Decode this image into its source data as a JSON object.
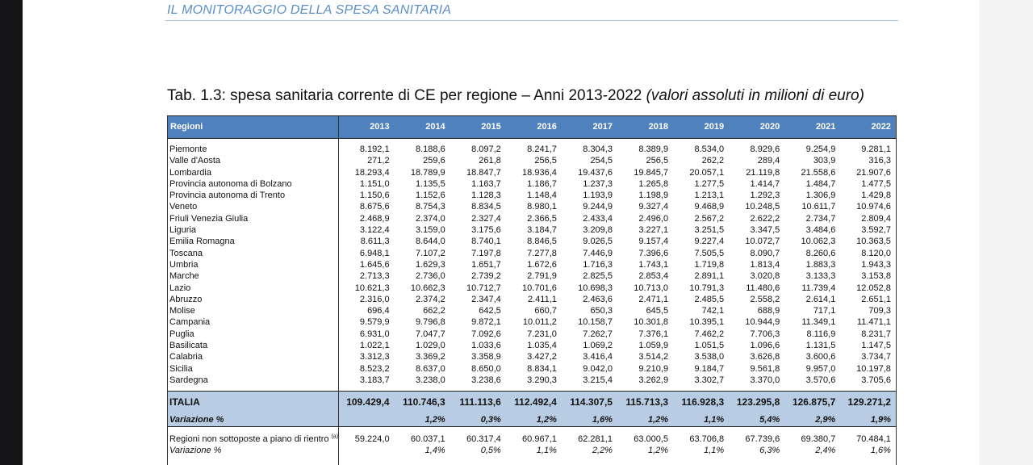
{
  "header": {
    "title": "IL MONITORAGGIO DELLA SPESA SANITARIA"
  },
  "caption": {
    "main": "Tab. 1.3: spesa sanitaria corrente di CE per regione – Anni 2013-2022",
    "sub": "(valori assoluti in milioni di euro)"
  },
  "table": {
    "header_label": "Regioni",
    "years": [
      "2013",
      "2014",
      "2015",
      "2016",
      "2017",
      "2018",
      "2019",
      "2020",
      "2021",
      "2022"
    ],
    "rows": [
      {
        "name": "Piemonte",
        "values": [
          "8.192,1",
          "8.188,6",
          "8.097,2",
          "8.241,7",
          "8.304,3",
          "8.389,9",
          "8.534,0",
          "8.929,6",
          "9.254,9",
          "9.281,1"
        ]
      },
      {
        "name": "Valle d'Aosta",
        "values": [
          "271,2",
          "259,6",
          "261,8",
          "256,5",
          "254,5",
          "256,5",
          "262,2",
          "289,4",
          "303,9",
          "316,3"
        ]
      },
      {
        "name": "Lombardia",
        "values": [
          "18.293,4",
          "18.789,9",
          "18.847,7",
          "18.936,4",
          "19.437,6",
          "19.845,7",
          "20.057,1",
          "21.119,8",
          "21.558,6",
          "21.907,6"
        ]
      },
      {
        "name": "Provincia autonoma di Bolzano",
        "values": [
          "1.151,0",
          "1.135,5",
          "1.163,7",
          "1.186,7",
          "1.237,3",
          "1.265,8",
          "1.277,5",
          "1.414,7",
          "1.484,7",
          "1.477,5"
        ]
      },
      {
        "name": "Provincia autonoma di Trento",
        "values": [
          "1.150,6",
          "1.152,6",
          "1.128,3",
          "1.148,4",
          "1.193,9",
          "1.198,9",
          "1.213,1",
          "1.292,3",
          "1.306,9",
          "1.429,8"
        ]
      },
      {
        "name": "Veneto",
        "values": [
          "8.675,6",
          "8.754,3",
          "8.834,5",
          "8.980,1",
          "9.244,9",
          "9.327,4",
          "9.468,9",
          "10.248,5",
          "10.611,7",
          "10.974,6"
        ]
      },
      {
        "name": "Friuli Venezia Giulia",
        "values": [
          "2.468,9",
          "2.374,0",
          "2.327,4",
          "2.366,5",
          "2.433,4",
          "2.496,0",
          "2.567,2",
          "2.622,2",
          "2.734,7",
          "2.809,4"
        ]
      },
      {
        "name": "Liguria",
        "values": [
          "3.122,4",
          "3.159,0",
          "3.175,6",
          "3.184,7",
          "3.209,8",
          "3.227,1",
          "3.251,5",
          "3.347,5",
          "3.484,6",
          "3.592,7"
        ]
      },
      {
        "name": "Emilia Romagna",
        "values": [
          "8.611,3",
          "8.644,0",
          "8.740,1",
          "8.846,5",
          "9.026,5",
          "9.157,4",
          "9.227,4",
          "10.072,7",
          "10.062,3",
          "10.363,5"
        ]
      },
      {
        "name": "Toscana",
        "values": [
          "6.948,1",
          "7.107,2",
          "7.197,8",
          "7.277,8",
          "7.446,9",
          "7.396,6",
          "7.505,5",
          "8.090,7",
          "8.260,6",
          "8.120,0"
        ]
      },
      {
        "name": "Umbria",
        "values": [
          "1.645,6",
          "1.629,3",
          "1.651,7",
          "1.672,6",
          "1.716,3",
          "1.743,1",
          "1.719,8",
          "1.813,4",
          "1.883,3",
          "1.943,3"
        ]
      },
      {
        "name": "Marche",
        "values": [
          "2.713,3",
          "2.736,0",
          "2.739,2",
          "2.791,9",
          "2.825,5",
          "2.853,4",
          "2.891,1",
          "3.020,8",
          "3.133,3",
          "3.153,8"
        ]
      },
      {
        "name": "Lazio",
        "values": [
          "10.621,3",
          "10.662,3",
          "10.712,7",
          "10.701,6",
          "10.698,3",
          "10.713,0",
          "10.791,3",
          "11.480,6",
          "11.739,4",
          "12.052,8"
        ]
      },
      {
        "name": "Abruzzo",
        "values": [
          "2.316,0",
          "2.374,2",
          "2.347,4",
          "2.411,1",
          "2.463,6",
          "2.471,1",
          "2.485,5",
          "2.558,2",
          "2.614,1",
          "2.651,1"
        ]
      },
      {
        "name": "Molise",
        "values": [
          "696,4",
          "662,2",
          "642,5",
          "660,7",
          "650,3",
          "645,5",
          "742,1",
          "688,9",
          "717,1",
          "709,3"
        ]
      },
      {
        "name": "Campania",
        "values": [
          "9.579,9",
          "9.796,8",
          "9.872,1",
          "10.011,2",
          "10.158,7",
          "10.301,8",
          "10.395,1",
          "10.944,9",
          "11.349,1",
          "11.471,1"
        ]
      },
      {
        "name": "Puglia",
        "values": [
          "6.931,0",
          "7.047,7",
          "7.092,6",
          "7.231,0",
          "7.262,7",
          "7.376,1",
          "7.462,2",
          "7.706,3",
          "8.116,9",
          "8.231,7"
        ]
      },
      {
        "name": "Basilicata",
        "values": [
          "1.022,1",
          "1.029,0",
          "1.033,6",
          "1.035,4",
          "1.069,2",
          "1.059,9",
          "1.051,5",
          "1.096,6",
          "1.131,5",
          "1.147,5"
        ]
      },
      {
        "name": "Calabria",
        "values": [
          "3.312,3",
          "3.369,2",
          "3.358,9",
          "3.427,2",
          "3.416,4",
          "3.514,2",
          "3.538,0",
          "3.626,8",
          "3.600,6",
          "3.734,7"
        ]
      },
      {
        "name": "Sicilia",
        "values": [
          "8.523,2",
          "8.637,0",
          "8.650,0",
          "8.834,1",
          "9.042,0",
          "9.210,9",
          "9.184,7",
          "9.561,8",
          "9.957,0",
          "10.197,8"
        ]
      },
      {
        "name": "Sardegna",
        "values": [
          "3.183,7",
          "3.238,0",
          "3.238,6",
          "3.290,3",
          "3.215,4",
          "3.262,9",
          "3.302,7",
          "3.370,0",
          "3.570,6",
          "3.705,6"
        ]
      }
    ],
    "italia": {
      "name": "ITALIA",
      "values": [
        "109.429,4",
        "110.746,3",
        "111.113,6",
        "112.492,4",
        "114.307,5",
        "115.713,3",
        "116.928,3",
        "123.295,8",
        "126.875,7",
        "129.271,2"
      ]
    },
    "italia_var": {
      "name": "Variazione %",
      "values": [
        "",
        "1,2%",
        "0,3%",
        "1,2%",
        "1,6%",
        "1,2%",
        "1,1%",
        "5,4%",
        "2,9%",
        "1,9%"
      ]
    },
    "non_piano": {
      "name": "Regioni non sottoposte a piano di rientro",
      "note": "(a)",
      "values": [
        "59.224,0",
        "60.037,1",
        "60.317,4",
        "60.967,1",
        "62.281,1",
        "63.000,5",
        "63.706,8",
        "67.739,6",
        "69.380,7",
        "70.484,1"
      ]
    },
    "non_piano_var": {
      "name": "Variazione %",
      "values": [
        "",
        "1,4%",
        "0,5%",
        "1,1%",
        "2,2%",
        "1,2%",
        "1,1%",
        "6,3%",
        "2,4%",
        "1,6%"
      ]
    }
  }
}
